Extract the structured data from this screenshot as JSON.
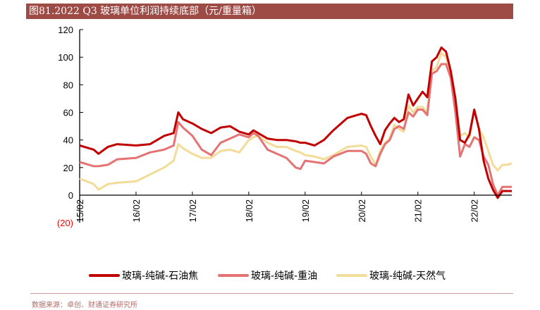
{
  "title": "图81.2022 Q3 玻璃单位利润持续底部（元/重量箱）",
  "source": "数据来源：卓创、财通证券研究所",
  "chart_data": {
    "type": "line",
    "title": "图81.2022 Q3 玻璃单位利润持续底部（元/重量箱）",
    "xlabel": "",
    "ylabel": "",
    "ylim": [
      -20,
      120
    ],
    "yticks": [
      120,
      100,
      80,
      60,
      40,
      20,
      0,
      -20
    ],
    "ytick_labels": [
      "120",
      "100",
      "80",
      "60",
      "40",
      "20",
      "0",
      "(20)"
    ],
    "negative_label_color": "#ff0000",
    "xlim": [
      "2015-02",
      "2022-10"
    ],
    "xticks": [
      "2015-02",
      "2016-02",
      "2017-02",
      "2018-02",
      "2019-02",
      "2020-02",
      "2021-02",
      "2022-02"
    ],
    "xtick_labels": [
      "15/02",
      "16/02",
      "17/02",
      "18/02",
      "19/02",
      "20/02",
      "21/02",
      "22/02"
    ],
    "grid": false,
    "legend_position": "bottom",
    "x": [
      "2015-02",
      "2015-05",
      "2015-06",
      "2015-08",
      "2015-10",
      "2016-02",
      "2016-05",
      "2016-08",
      "2016-10",
      "2016-11",
      "2016-12",
      "2017-02",
      "2017-04",
      "2017-06",
      "2017-08",
      "2017-10",
      "2017-12",
      "2018-02",
      "2018-03",
      "2018-04",
      "2018-06",
      "2018-08",
      "2018-10",
      "2018-12",
      "2019-01",
      "2019-02",
      "2019-04",
      "2019-06",
      "2019-08",
      "2019-11",
      "2020-02",
      "2020-03",
      "2020-04",
      "2020-05",
      "2020-06",
      "2020-07",
      "2020-08",
      "2020-09",
      "2020-10",
      "2020-11",
      "2020-12",
      "2021-01",
      "2021-02",
      "2021-03",
      "2021-04",
      "2021-05",
      "2021-06",
      "2021-07",
      "2021-08",
      "2021-09",
      "2021-10",
      "2021-11",
      "2021-12",
      "2022-01",
      "2022-02",
      "2022-03",
      "2022-04",
      "2022-05",
      "2022-06",
      "2022-07",
      "2022-08",
      "2022-09",
      "2022-10"
    ],
    "series": [
      {
        "name": "玻璃-纯碱-石油焦",
        "color": "#c00000",
        "values": [
          36,
          33,
          30,
          35,
          37,
          36,
          37,
          43,
          45,
          60,
          55,
          52,
          48,
          45,
          49,
          50,
          46,
          44,
          47,
          45,
          41,
          40,
          40,
          39,
          38,
          38,
          36,
          40,
          47,
          56,
          59,
          58,
          50,
          43,
          37,
          47,
          52,
          56,
          53,
          55,
          73,
          65,
          70,
          75,
          71,
          97,
          100,
          107,
          104,
          90,
          70,
          40,
          38,
          44,
          62,
          48,
          25,
          12,
          4,
          -2,
          3,
          3,
          3
        ]
      },
      {
        "name": "玻璃-纯碱-重油",
        "color": "#e57373",
        "values": [
          24,
          21,
          21,
          22,
          26,
          27,
          31,
          33,
          36,
          53,
          49,
          43,
          33,
          29,
          38,
          41,
          44,
          42,
          45,
          43,
          33,
          30,
          27,
          20,
          19,
          25,
          24,
          23,
          28,
          32,
          32,
          30,
          23,
          21,
          30,
          37,
          40,
          48,
          50,
          48,
          60,
          57,
          62,
          62,
          58,
          88,
          90,
          95,
          95,
          85,
          60,
          28,
          37,
          35,
          42,
          40,
          28,
          22,
          8,
          0,
          6,
          6,
          6
        ]
      },
      {
        "name": "玻璃-纯碱-天然气",
        "color": "#f3dc98",
        "values": [
          12,
          8,
          4,
          8,
          9,
          10,
          15,
          20,
          25,
          37,
          34,
          30,
          27,
          27,
          32,
          33,
          31,
          40,
          42,
          43,
          38,
          35,
          35,
          32,
          31,
          29,
          28,
          26,
          29,
          35,
          36,
          35,
          28,
          22,
          32,
          38,
          41,
          51,
          48,
          46,
          65,
          60,
          64,
          64,
          60,
          90,
          93,
          103,
          100,
          88,
          68,
          43,
          45,
          42,
          62,
          48,
          42,
          32,
          22,
          18,
          22,
          22,
          23
        ]
      }
    ]
  }
}
